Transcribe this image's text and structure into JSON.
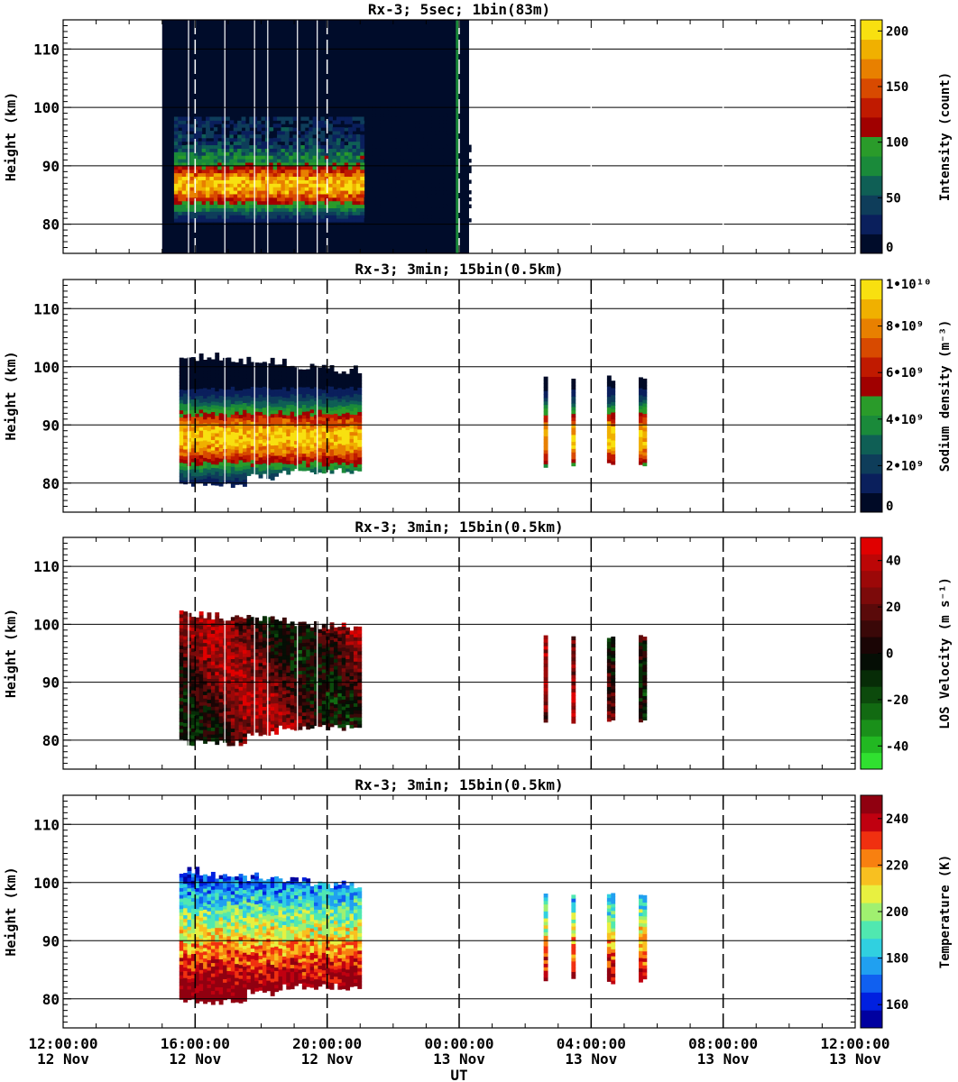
{
  "x_axis": {
    "label": "UT",
    "tick_times": [
      "12:00:00",
      "16:00:00",
      "20:00:00",
      "00:00:00",
      "04:00:00",
      "08:00:00",
      "12:00:00"
    ],
    "tick_dates": [
      "12 Nov",
      "12 Nov",
      "12 Nov",
      "13 Nov",
      "13 Nov",
      "13 Nov",
      "13 Nov"
    ]
  },
  "chart_data": [
    {
      "type": "heatmap",
      "title": "Rx-3;  5sec; 1bin(83m)",
      "xlabel": "UT",
      "ylabel": "Height (km)",
      "xlim": [
        "2023-11-12T12:00:00",
        "2023-11-13T12:00:00"
      ],
      "ylim": [
        75,
        115
      ],
      "yticks": [
        "110",
        "100",
        "90",
        "80"
      ],
      "colorbar": {
        "label": "Intensity (count)",
        "ticks": [
          "0",
          "50",
          "100",
          "150",
          "200"
        ],
        "range": [
          0,
          210
        ],
        "colors": [
          "#000c2a",
          "#0a1f5c",
          "#0e3d5a",
          "#0f5f55",
          "#1a8a3a",
          "#2a9b2a",
          "#a00000",
          "#c01a00",
          "#d84a00",
          "#e88000",
          "#f0b000",
          "#f8e010"
        ]
      }
    },
    {
      "type": "heatmap",
      "title": "Rx-3; 3min; 15bin(0.5km)",
      "xlabel": "UT",
      "ylabel": "Height (km)",
      "xlim": [
        "2023-11-12T12:00:00",
        "2023-11-13T12:00:00"
      ],
      "ylim": [
        75,
        115
      ],
      "yticks": [
        "110",
        "100",
        "90",
        "80"
      ],
      "colorbar": {
        "label": "Sodium density (m⁻³)",
        "ticks": [
          "0",
          "2•10⁹",
          "4•10⁹",
          "6•10⁹",
          "8•10⁹",
          "1•10¹⁰"
        ],
        "range": [
          0,
          10000000000
        ],
        "colors": [
          "#000a26",
          "#0a1f5c",
          "#0e3d5a",
          "#0f5f55",
          "#1a8a3a",
          "#2a9b2a",
          "#a00000",
          "#c01a00",
          "#d84a00",
          "#e88000",
          "#f0b000",
          "#f8e010"
        ]
      }
    },
    {
      "type": "heatmap",
      "title": "Rx-3; 3min; 15bin(0.5km)",
      "xlabel": "UT",
      "ylabel": "Height (km)",
      "xlim": [
        "2023-11-12T12:00:00",
        "2023-11-13T12:00:00"
      ],
      "ylim": [
        75,
        115
      ],
      "yticks": [
        "110",
        "100",
        "90",
        "80"
      ],
      "colorbar": {
        "label": "LOS Velocity (m s⁻¹)",
        "ticks": [
          "-40",
          "-20",
          "0",
          "20",
          "40"
        ],
        "range": [
          -50,
          50
        ],
        "colors": [
          "#30e030",
          "#22b822",
          "#1a901a",
          "#126a12",
          "#0c4a0c",
          "#072c07",
          "#050e05",
          "#1a0505",
          "#3a0808",
          "#5a0a0a",
          "#7c0a0a",
          "#9c0808",
          "#bc0606",
          "#e00000"
        ]
      }
    },
    {
      "type": "heatmap",
      "title": "Rx-3; 3min; 15bin(0.5km)",
      "xlabel": "UT",
      "ylabel": "Height (km)",
      "xlim": [
        "2023-11-12T12:00:00",
        "2023-11-13T12:00:00"
      ],
      "ylim": [
        75,
        115
      ],
      "yticks": [
        "110",
        "100",
        "90",
        "80"
      ],
      "colorbar": {
        "label": "Temperature (K)",
        "ticks": [
          "160",
          "180",
          "200",
          "220",
          "240"
        ],
        "range": [
          150,
          250
        ],
        "colors": [
          "#0000a0",
          "#0020e0",
          "#1060f0",
          "#20a0f0",
          "#30d0e0",
          "#50e8b0",
          "#a0f070",
          "#e8f040",
          "#f8c020",
          "#f88010",
          "#f03010",
          "#c00010",
          "#900010"
        ]
      }
    }
  ]
}
